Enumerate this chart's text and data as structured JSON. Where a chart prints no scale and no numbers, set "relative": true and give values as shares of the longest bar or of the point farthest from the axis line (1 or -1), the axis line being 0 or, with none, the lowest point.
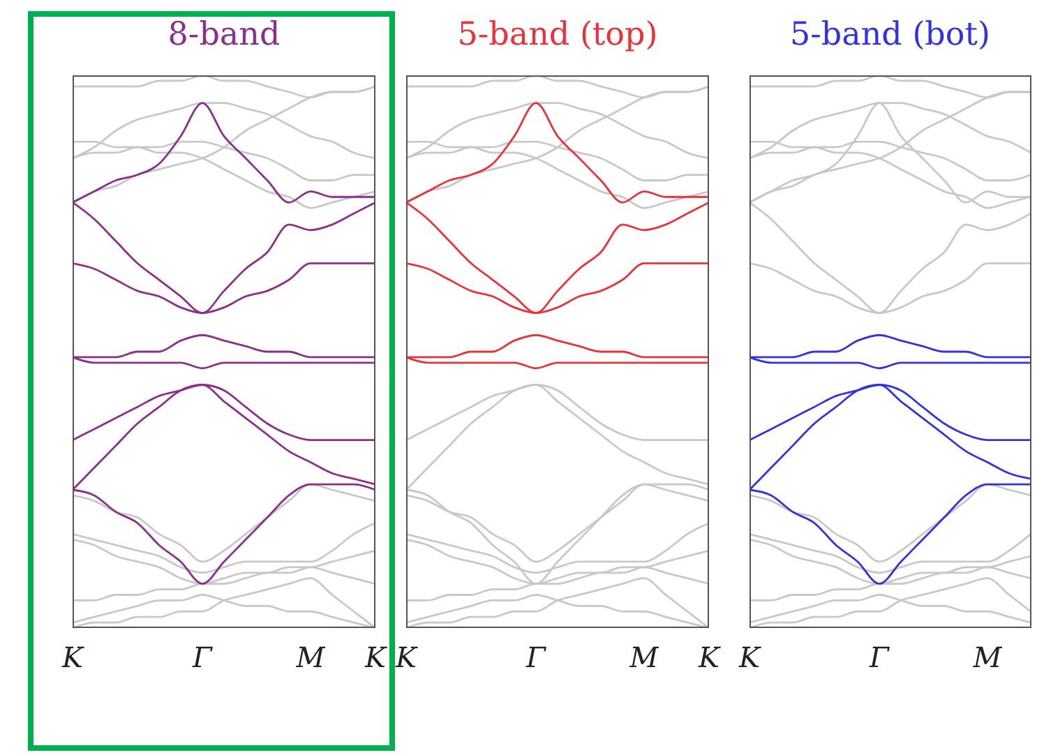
{
  "chart_data": [
    {
      "type": "line",
      "title": "8-band",
      "relative": true,
      "categories": [
        "K",
        null,
        null,
        null,
        null,
        null,
        "Γ",
        null,
        null,
        null,
        null,
        "M",
        null,
        null,
        "K"
      ],
      "series": [
        {
          "color": "#8b2f8b",
          "values": [
            0.77,
            0.79,
            0.81,
            0.82,
            0.84,
            0.89,
            0.95,
            0.89,
            0.85,
            0.81,
            0.77,
            0.79,
            0.78,
            0.78,
            0.78
          ]
        },
        {
          "color": "#8b2f8b",
          "values": [
            0.77,
            0.74,
            0.7,
            0.66,
            0.63,
            0.6,
            0.57,
            0.61,
            0.65,
            0.68,
            0.73,
            0.72,
            0.73,
            0.75,
            0.77
          ]
        },
        {
          "color": "#8b2f8b",
          "values": [
            0.66,
            0.65,
            0.63,
            0.61,
            0.6,
            0.58,
            0.57,
            0.58,
            0.6,
            0.61,
            0.63,
            0.66,
            0.66,
            0.66,
            0.66
          ]
        },
        {
          "color": "#8b2f8b",
          "values": [
            0.49,
            0.49,
            0.49,
            0.5,
            0.5,
            0.52,
            0.53,
            0.52,
            0.51,
            0.5,
            0.5,
            0.49,
            0.49,
            0.49,
            0.49
          ]
        },
        {
          "color": "#8b2f8b",
          "values": [
            0.49,
            0.48,
            0.48,
            0.48,
            0.48,
            0.48,
            0.47,
            0.48,
            0.48,
            0.48,
            0.48,
            0.48,
            0.48,
            0.48,
            0.48
          ]
        },
        {
          "color": "#8b2f8b",
          "values": [
            0.34,
            0.36,
            0.38,
            0.4,
            0.42,
            0.43,
            0.44,
            0.43,
            0.4,
            0.37,
            0.35,
            0.34,
            0.34,
            0.34,
            0.34
          ]
        },
        {
          "color": "#8b2f8b",
          "values": [
            0.25,
            0.29,
            0.33,
            0.37,
            0.4,
            0.43,
            0.44,
            0.41,
            0.38,
            0.35,
            0.32,
            0.3,
            0.28,
            0.27,
            0.26
          ]
        },
        {
          "color": "#8b2f8b",
          "values": [
            0.25,
            0.24,
            0.21,
            0.19,
            0.15,
            0.12,
            0.08,
            0.12,
            0.16,
            0.2,
            0.24,
            0.26,
            0.26,
            0.26,
            0.25
          ]
        },
        {
          "color": "#c8c8c8",
          "values": [
            0.98,
            0.98,
            0.98,
            0.98,
            0.99,
            0.99,
            1.0,
            0.99,
            0.99,
            0.98,
            0.97,
            0.96,
            0.97,
            0.97,
            0.98
          ]
        },
        {
          "color": "#c8c8c8",
          "values": [
            0.85,
            0.87,
            0.9,
            0.92,
            0.93,
            0.94,
            0.95,
            0.95,
            0.94,
            0.93,
            0.91,
            0.89,
            0.88,
            0.86,
            0.85
          ]
        },
        {
          "color": "#c8c8c8",
          "values": [
            0.85,
            0.86,
            0.86,
            0.87,
            0.87,
            0.88,
            0.88,
            0.87,
            0.86,
            0.85,
            0.83,
            0.81,
            0.81,
            0.82,
            0.82
          ]
        },
        {
          "color": "#c8c8c8",
          "values": [
            0.77,
            0.79,
            0.8,
            0.82,
            0.83,
            0.84,
            0.85,
            0.87,
            0.9,
            0.92,
            0.94,
            0.96,
            0.97,
            0.97,
            0.98
          ]
        },
        {
          "color": "#c8c8c8",
          "values": [
            0.88,
            0.88,
            0.87,
            0.87,
            0.86,
            0.86,
            0.85,
            0.83,
            0.81,
            0.79,
            0.78,
            0.76,
            0.77,
            0.78,
            0.79
          ]
        },
        {
          "color": "#c8c8c8",
          "values": [
            0.24,
            0.23,
            0.21,
            0.2,
            0.17,
            0.15,
            0.12,
            0.14,
            0.17,
            0.2,
            0.23,
            0.26,
            0.25,
            0.24,
            0.23
          ]
        },
        {
          "color": "#c8c8c8",
          "values": [
            0.17,
            0.16,
            0.15,
            0.14,
            0.13,
            0.11,
            0.1,
            0.11,
            0.12,
            0.12,
            0.12,
            0.12,
            0.14,
            0.17,
            0.19
          ]
        },
        {
          "color": "#c8c8c8",
          "values": [
            0.16,
            0.15,
            0.13,
            0.12,
            0.11,
            0.09,
            0.08,
            0.09,
            0.1,
            0.1,
            0.11,
            0.11,
            0.12,
            0.13,
            0.14
          ]
        },
        {
          "color": "#c8c8c8",
          "values": [
            0.05,
            0.05,
            0.06,
            0.06,
            0.07,
            0.07,
            0.08,
            0.08,
            0.09,
            0.1,
            0.1,
            0.11,
            0.1,
            0.09,
            0.08
          ]
        },
        {
          "color": "#c8c8c8",
          "values": [
            0.01,
            0.02,
            0.03,
            0.04,
            0.05,
            0.05,
            0.06,
            0.05,
            0.04,
            0.04,
            0.03,
            0.03,
            0.02,
            0.01,
            0
          ]
        },
        {
          "color": "#c8c8c8",
          "values": [
            0,
            0.01,
            0.01,
            0.02,
            0.02,
            0.03,
            0.03,
            0.05,
            0.06,
            0.07,
            0.08,
            0.09,
            0.06,
            0.03,
            0
          ]
        }
      ]
    },
    {
      "type": "line",
      "title": "5-band (top)",
      "relative": true,
      "categories": [
        "K",
        null,
        null,
        null,
        null,
        null,
        "Γ",
        null,
        null,
        null,
        null,
        "M",
        null,
        null,
        "K"
      ],
      "series": [
        {
          "color": "#e8333a",
          "values": [
            0.77,
            0.79,
            0.81,
            0.82,
            0.84,
            0.89,
            0.95,
            0.89,
            0.85,
            0.81,
            0.77,
            0.79,
            0.78,
            0.78,
            0.78
          ]
        },
        {
          "color": "#e8333a",
          "values": [
            0.77,
            0.74,
            0.7,
            0.66,
            0.63,
            0.6,
            0.57,
            0.61,
            0.65,
            0.68,
            0.73,
            0.72,
            0.73,
            0.75,
            0.77
          ]
        },
        {
          "color": "#e8333a",
          "values": [
            0.66,
            0.65,
            0.63,
            0.61,
            0.6,
            0.58,
            0.57,
            0.58,
            0.6,
            0.61,
            0.63,
            0.66,
            0.66,
            0.66,
            0.66
          ]
        },
        {
          "color": "#e8333a",
          "values": [
            0.49,
            0.49,
            0.49,
            0.5,
            0.5,
            0.52,
            0.53,
            0.52,
            0.51,
            0.5,
            0.5,
            0.49,
            0.49,
            0.49,
            0.49
          ]
        },
        {
          "color": "#e8333a",
          "values": [
            0.49,
            0.48,
            0.48,
            0.48,
            0.48,
            0.48,
            0.47,
            0.48,
            0.48,
            0.48,
            0.48,
            0.48,
            0.48,
            0.48,
            0.48
          ]
        },
        {
          "color": "#c8c8c8",
          "values": [
            0.34,
            0.36,
            0.38,
            0.4,
            0.42,
            0.43,
            0.44,
            0.43,
            0.4,
            0.37,
            0.35,
            0.34,
            0.34,
            0.34,
            0.34
          ]
        },
        {
          "color": "#c8c8c8",
          "values": [
            0.25,
            0.29,
            0.33,
            0.37,
            0.4,
            0.43,
            0.44,
            0.41,
            0.38,
            0.35,
            0.32,
            0.3,
            0.28,
            0.27,
            0.26
          ]
        },
        {
          "color": "#c8c8c8",
          "values": [
            0.25,
            0.24,
            0.21,
            0.19,
            0.15,
            0.12,
            0.08,
            0.12,
            0.16,
            0.2,
            0.24,
            0.26,
            0.26,
            0.26,
            0.25
          ]
        },
        {
          "color": "#c8c8c8",
          "values": [
            0.98,
            0.98,
            0.98,
            0.98,
            0.99,
            0.99,
            1.0,
            0.99,
            0.99,
            0.98,
            0.97,
            0.96,
            0.97,
            0.97,
            0.98
          ]
        },
        {
          "color": "#c8c8c8",
          "values": [
            0.85,
            0.87,
            0.9,
            0.92,
            0.93,
            0.94,
            0.95,
            0.95,
            0.94,
            0.93,
            0.91,
            0.89,
            0.88,
            0.86,
            0.85
          ]
        },
        {
          "color": "#c8c8c8",
          "values": [
            0.85,
            0.86,
            0.86,
            0.87,
            0.87,
            0.88,
            0.88,
            0.87,
            0.86,
            0.85,
            0.83,
            0.81,
            0.81,
            0.82,
            0.82
          ]
        },
        {
          "color": "#c8c8c8",
          "values": [
            0.77,
            0.79,
            0.8,
            0.82,
            0.83,
            0.84,
            0.85,
            0.87,
            0.9,
            0.92,
            0.94,
            0.96,
            0.97,
            0.97,
            0.98
          ]
        },
        {
          "color": "#c8c8c8",
          "values": [
            0.88,
            0.88,
            0.87,
            0.87,
            0.86,
            0.86,
            0.85,
            0.83,
            0.81,
            0.79,
            0.78,
            0.76,
            0.77,
            0.78,
            0.79
          ]
        },
        {
          "color": "#c8c8c8",
          "values": [
            0.24,
            0.23,
            0.21,
            0.2,
            0.17,
            0.15,
            0.12,
            0.14,
            0.17,
            0.2,
            0.23,
            0.26,
            0.25,
            0.24,
            0.23
          ]
        },
        {
          "color": "#c8c8c8",
          "values": [
            0.17,
            0.16,
            0.15,
            0.14,
            0.13,
            0.11,
            0.1,
            0.11,
            0.12,
            0.12,
            0.12,
            0.12,
            0.14,
            0.17,
            0.19
          ]
        },
        {
          "color": "#c8c8c8",
          "values": [
            0.16,
            0.15,
            0.13,
            0.12,
            0.11,
            0.09,
            0.08,
            0.09,
            0.1,
            0.1,
            0.11,
            0.11,
            0.12,
            0.13,
            0.14
          ]
        },
        {
          "color": "#c8c8c8",
          "values": [
            0.05,
            0.05,
            0.06,
            0.06,
            0.07,
            0.07,
            0.08,
            0.08,
            0.09,
            0.1,
            0.1,
            0.11,
            0.1,
            0.09,
            0.08
          ]
        },
        {
          "color": "#c8c8c8",
          "values": [
            0.01,
            0.02,
            0.03,
            0.04,
            0.05,
            0.05,
            0.06,
            0.05,
            0.04,
            0.04,
            0.03,
            0.03,
            0.02,
            0.01,
            0
          ]
        },
        {
          "color": "#c8c8c8",
          "values": [
            0,
            0.01,
            0.01,
            0.02,
            0.02,
            0.03,
            0.03,
            0.05,
            0.06,
            0.07,
            0.08,
            0.09,
            0.06,
            0.03,
            0
          ]
        }
      ]
    },
    {
      "type": "line",
      "title": "5-band (bot)",
      "relative": true,
      "categories": [
        "K",
        null,
        null,
        null,
        null,
        null,
        "Γ",
        null,
        null,
        null,
        null,
        "M",
        null,
        null
      ],
      "series": [
        {
          "color": "#3333dd",
          "values": [
            0.49,
            0.49,
            0.49,
            0.5,
            0.5,
            0.52,
            0.53,
            0.52,
            0.51,
            0.5,
            0.5,
            0.49,
            0.49,
            0.49
          ]
        },
        {
          "color": "#3333dd",
          "values": [
            0.49,
            0.48,
            0.48,
            0.48,
            0.48,
            0.48,
            0.47,
            0.48,
            0.48,
            0.48,
            0.48,
            0.48,
            0.48,
            0.48
          ]
        },
        {
          "color": "#3333dd",
          "values": [
            0.34,
            0.36,
            0.38,
            0.4,
            0.42,
            0.43,
            0.44,
            0.43,
            0.4,
            0.37,
            0.35,
            0.34,
            0.34,
            0.34
          ]
        },
        {
          "color": "#3333dd",
          "values": [
            0.25,
            0.29,
            0.33,
            0.37,
            0.4,
            0.43,
            0.44,
            0.41,
            0.38,
            0.35,
            0.32,
            0.3,
            0.28,
            0.27
          ]
        },
        {
          "color": "#3333dd",
          "values": [
            0.25,
            0.24,
            0.21,
            0.19,
            0.15,
            0.12,
            0.08,
            0.12,
            0.16,
            0.2,
            0.24,
            0.26,
            0.26,
            0.26
          ]
        },
        {
          "color": "#c8c8c8",
          "values": [
            0.77,
            0.79,
            0.81,
            0.82,
            0.84,
            0.89,
            0.95,
            0.89,
            0.85,
            0.81,
            0.77,
            0.79,
            0.78,
            0.78
          ]
        },
        {
          "color": "#c8c8c8",
          "values": [
            0.77,
            0.74,
            0.7,
            0.66,
            0.63,
            0.6,
            0.57,
            0.61,
            0.65,
            0.68,
            0.73,
            0.72,
            0.73,
            0.75
          ]
        },
        {
          "color": "#c8c8c8",
          "values": [
            0.66,
            0.65,
            0.63,
            0.61,
            0.6,
            0.58,
            0.57,
            0.58,
            0.6,
            0.61,
            0.63,
            0.66,
            0.66,
            0.66
          ]
        },
        {
          "color": "#c8c8c8",
          "values": [
            0.98,
            0.98,
            0.98,
            0.98,
            0.99,
            0.99,
            1.0,
            0.99,
            0.99,
            0.98,
            0.97,
            0.96,
            0.97,
            0.97
          ]
        },
        {
          "color": "#c8c8c8",
          "values": [
            0.85,
            0.87,
            0.9,
            0.92,
            0.93,
            0.94,
            0.95,
            0.95,
            0.94,
            0.93,
            0.91,
            0.89,
            0.88,
            0.86
          ]
        },
        {
          "color": "#c8c8c8",
          "values": [
            0.85,
            0.86,
            0.86,
            0.87,
            0.87,
            0.88,
            0.88,
            0.87,
            0.86,
            0.85,
            0.83,
            0.81,
            0.81,
            0.82
          ]
        },
        {
          "color": "#c8c8c8",
          "values": [
            0.77,
            0.79,
            0.8,
            0.82,
            0.83,
            0.84,
            0.85,
            0.87,
            0.9,
            0.92,
            0.94,
            0.96,
            0.97,
            0.97
          ]
        },
        {
          "color": "#c8c8c8",
          "values": [
            0.88,
            0.88,
            0.87,
            0.87,
            0.86,
            0.86,
            0.85,
            0.83,
            0.81,
            0.79,
            0.78,
            0.76,
            0.77,
            0.78
          ]
        },
        {
          "color": "#c8c8c8",
          "values": [
            0.24,
            0.23,
            0.21,
            0.2,
            0.17,
            0.15,
            0.12,
            0.14,
            0.17,
            0.2,
            0.23,
            0.26,
            0.25,
            0.24
          ]
        },
        {
          "color": "#c8c8c8",
          "values": [
            0.17,
            0.16,
            0.15,
            0.14,
            0.13,
            0.11,
            0.1,
            0.11,
            0.12,
            0.12,
            0.12,
            0.12,
            0.14,
            0.17
          ]
        },
        {
          "color": "#c8c8c8",
          "values": [
            0.16,
            0.15,
            0.13,
            0.12,
            0.11,
            0.09,
            0.08,
            0.09,
            0.1,
            0.1,
            0.11,
            0.11,
            0.12,
            0.13
          ]
        },
        {
          "color": "#c8c8c8",
          "values": [
            0.05,
            0.05,
            0.06,
            0.06,
            0.07,
            0.07,
            0.08,
            0.08,
            0.09,
            0.1,
            0.1,
            0.11,
            0.1,
            0.09
          ]
        },
        {
          "color": "#c8c8c8",
          "values": [
            0.01,
            0.02,
            0.03,
            0.04,
            0.05,
            0.05,
            0.06,
            0.05,
            0.04,
            0.04,
            0.03,
            0.03,
            0.02,
            0.01
          ]
        },
        {
          "color": "#c8c8c8",
          "values": [
            0,
            0.01,
            0.01,
            0.02,
            0.02,
            0.03,
            0.03,
            0.05,
            0.06,
            0.07,
            0.08,
            0.09,
            0.06,
            0.03
          ]
        }
      ]
    }
  ]
}
